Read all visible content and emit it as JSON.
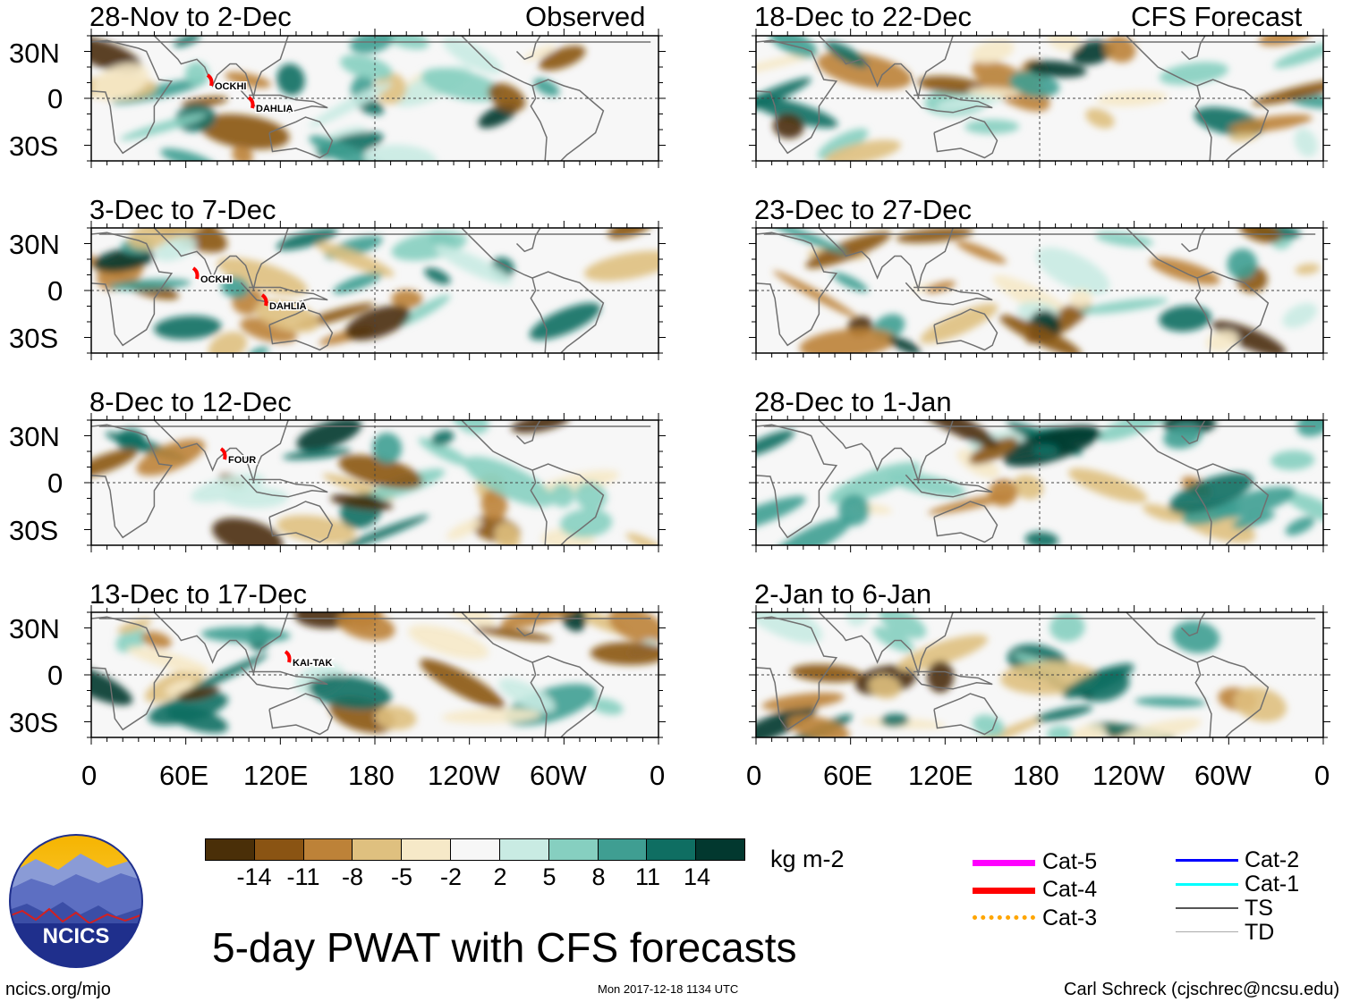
{
  "panels": [
    {
      "title_left": "28-Nov to 2-Dec",
      "title_right": "Observed",
      "storms": [
        "OCKHI",
        "DAHLIA"
      ]
    },
    {
      "title_left": "3-Dec to 7-Dec",
      "title_right": "",
      "storms": [
        "OCKHI",
        "DAHLIA"
      ]
    },
    {
      "title_left": "8-Dec to 12-Dec",
      "title_right": "",
      "storms": [
        "FOUR"
      ]
    },
    {
      "title_left": "13-Dec to 17-Dec",
      "title_right": "",
      "storms": [
        "KAI-TAK"
      ]
    },
    {
      "title_left": "18-Dec to 22-Dec",
      "title_right": "CFS Forecast",
      "storms": []
    },
    {
      "title_left": "23-Dec to 27-Dec",
      "title_right": "",
      "storms": []
    },
    {
      "title_left": "28-Dec to 1-Jan",
      "title_right": "",
      "storms": []
    },
    {
      "title_left": "2-Jan to 6-Jan",
      "title_right": "",
      "storms": []
    }
  ],
  "lat_labels": [
    "30N",
    "0",
    "30S"
  ],
  "lon_labels": [
    "0",
    "60E",
    "120E",
    "180",
    "120W",
    "60W",
    "0"
  ],
  "colorbar": {
    "colors": [
      "#4a2f08",
      "#8a5413",
      "#bd8238",
      "#dfc07f",
      "#f6e9c8",
      "#f7f7f7",
      "#c9ebe3",
      "#86cfc0",
      "#3f9e92",
      "#0f6e62",
      "#02382f"
    ],
    "ticks": [
      "-14",
      "-11",
      "-8",
      "-5",
      "-2",
      "2",
      "5",
      "8",
      "11",
      "14"
    ],
    "units": "kg m-2"
  },
  "legend": [
    {
      "label": "Cat-5",
      "color": "#ff00ff"
    },
    {
      "label": "Cat-4",
      "color": "#ff0000"
    },
    {
      "label": "Cat-3",
      "color": "#ffa500"
    },
    {
      "label": "Cat-2",
      "color": "#0000ff"
    },
    {
      "label": "Cat-1",
      "color": "#00ffff"
    },
    {
      "label": "TS",
      "color": "#555555"
    },
    {
      "label": "TD",
      "color": "#aaaaaa"
    }
  ],
  "logo_text": "NCICS",
  "main_title": "5-day PWAT with CFS forecasts",
  "footer": {
    "site": "ncics.org/mjo",
    "timestamp": "Mon 2017-12-18 1134 UTC",
    "credit": "Carl Schreck (cjschrec@ncsu.edu)"
  }
}
